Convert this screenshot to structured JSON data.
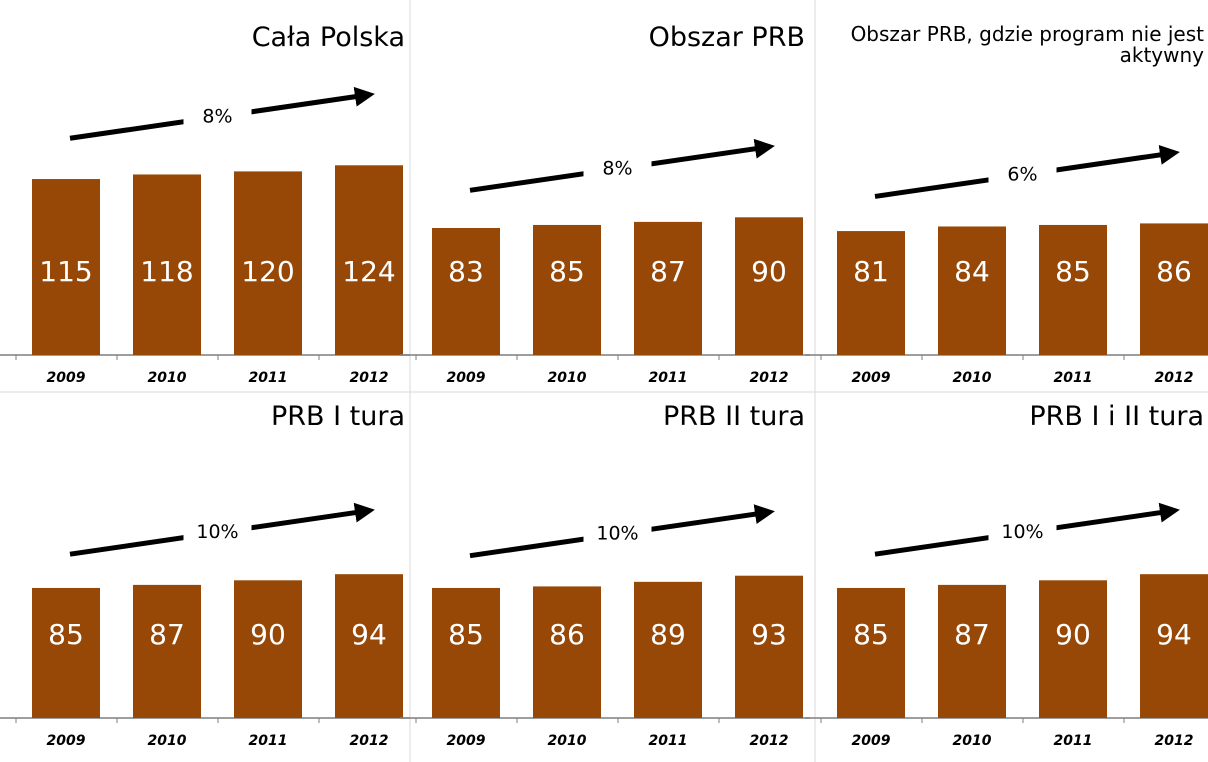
{
  "chart_data": [
    {
      "type": "bar",
      "title": "Cała Polska",
      "annotation": "8%",
      "categories": [
        "2009",
        "2010",
        "2011",
        "2012"
      ],
      "values": [
        115,
        118,
        120,
        124
      ],
      "color": "#974806"
    },
    {
      "type": "bar",
      "title": "Obszar PRB",
      "annotation": "8%",
      "categories": [
        "2009",
        "2010",
        "2011",
        "2012"
      ],
      "values": [
        83,
        85,
        87,
        90
      ],
      "color": "#974806"
    },
    {
      "type": "bar",
      "title": "Obszar PRB, gdzie program nie jest aktywny",
      "annotation": "6%",
      "categories": [
        "2009",
        "2010",
        "2011",
        "2012"
      ],
      "values": [
        81,
        84,
        85,
        86
      ],
      "color": "#974806"
    },
    {
      "type": "bar",
      "title": "PRB I tura",
      "annotation": "10%",
      "categories": [
        "2009",
        "2010",
        "2011",
        "2012"
      ],
      "values": [
        85,
        87,
        90,
        94
      ],
      "color": "#974806"
    },
    {
      "type": "bar",
      "title": "PRB II tura",
      "annotation": "10%",
      "categories": [
        "2009",
        "2010",
        "2011",
        "2012"
      ],
      "values": [
        85,
        86,
        89,
        93
      ],
      "color": "#974806"
    },
    {
      "type": "bar",
      "title": "PRB I i II tura",
      "annotation": "10%",
      "categories": [
        "2009",
        "2010",
        "2011",
        "2012"
      ],
      "values": [
        85,
        87,
        90,
        94
      ],
      "color": "#974806"
    }
  ]
}
